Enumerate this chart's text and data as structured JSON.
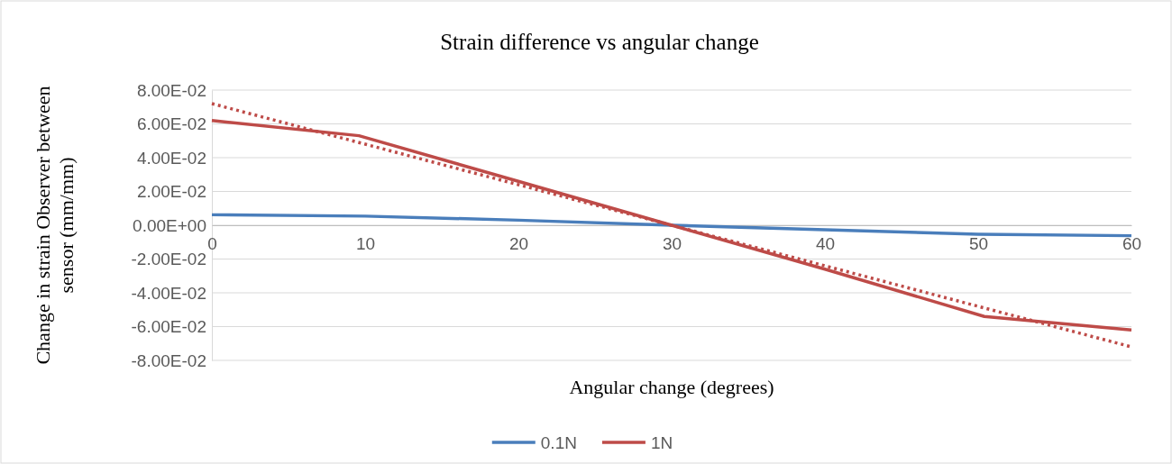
{
  "chart_data": {
    "type": "line",
    "title": "Strain difference vs angular change",
    "xlabel": "Angular change (degrees)",
    "ylabel": "Change in strain Observer between sensor (mm/mm)",
    "xlim": [
      0,
      60
    ],
    "xticks": [
      0,
      10,
      20,
      30,
      40,
      50,
      60
    ],
    "ylim": [
      -0.08,
      0.08
    ],
    "yticks": [
      {
        "value": -0.08,
        "label": "-8.00E-02"
      },
      {
        "value": -0.06,
        "label": "-6.00E-02"
      },
      {
        "value": -0.04,
        "label": "-4.00E-02"
      },
      {
        "value": -0.02,
        "label": "-2.00E-02"
      },
      {
        "value": 0,
        "label": "0.00E+00"
      },
      {
        "value": 0.02,
        "label": "2.00E-02"
      },
      {
        "value": 0.04,
        "label": "4.00E-02"
      },
      {
        "value": 0.06,
        "label": "6.00E-02"
      },
      {
        "value": 0.08,
        "label": "8.00E-02"
      }
    ],
    "grid": "y",
    "legend": "bottom",
    "marker": "none",
    "line_style": "solid",
    "series": [
      {
        "name": "0.1N",
        "color": "#4a7ebb",
        "x": [
          0,
          10,
          20,
          30,
          40,
          50,
          60
        ],
        "values": [
          0.0062,
          0.0054,
          0.003,
          0,
          -0.0027,
          -0.0053,
          -0.0062
        ]
      },
      {
        "name": "1N",
        "color": "#be4b48",
        "x": [
          0,
          9.6,
          20,
          30,
          40,
          50.4,
          60
        ],
        "values": [
          0.062,
          0.053,
          0.026,
          0,
          -0.026,
          -0.054,
          -0.062
        ]
      },
      {
        "color": "#be4b48",
        "line_style": "dotted",
        "x": [
          0,
          60
        ],
        "values": [
          0.072,
          -0.072
        ]
      }
    ]
  }
}
